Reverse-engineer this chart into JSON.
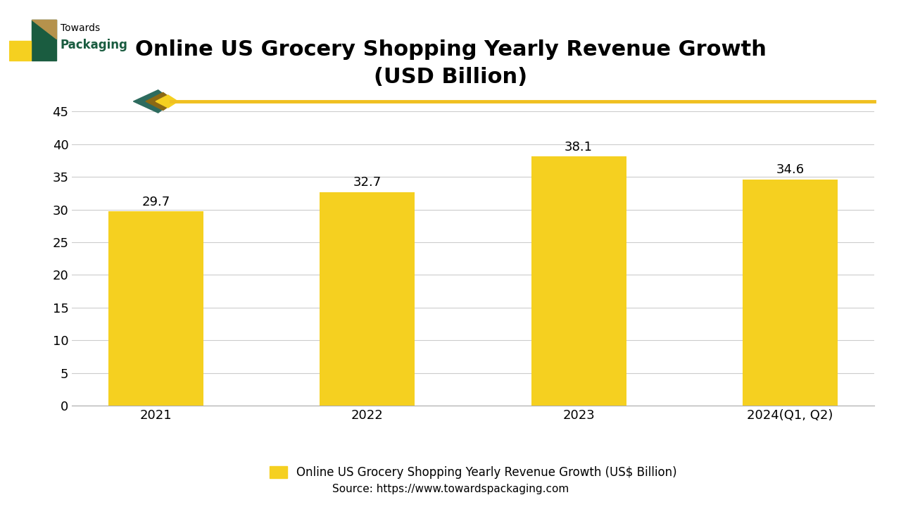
{
  "title": "Online US Grocery Shopping Yearly Revenue Growth\n(USD Billion)",
  "categories": [
    "2021",
    "2022",
    "2023",
    "2024(Q1, Q2)"
  ],
  "values": [
    29.7,
    32.7,
    38.1,
    34.6
  ],
  "bar_color": "#F5D020",
  "ylim": [
    0,
    45
  ],
  "yticks": [
    0,
    5,
    10,
    15,
    20,
    25,
    30,
    35,
    40,
    45
  ],
  "legend_label": "Online US Grocery Shopping Yearly Revenue Growth (US$ Billion)",
  "source_text": "Source: https://www.towardspackaging.com",
  "title_fontsize": 22,
  "tick_fontsize": 13,
  "bar_width": 0.45,
  "value_label_fontsize": 13,
  "background_color": "#ffffff",
  "grid_color": "#cccccc",
  "logo_green": "#1a5c40",
  "logo_tan": "#b5924c",
  "logo_yellow": "#F5D020",
  "arrow_teal": "#1a5c40",
  "arrow_tan": "#8B6914",
  "separator_color": "#F0C020"
}
